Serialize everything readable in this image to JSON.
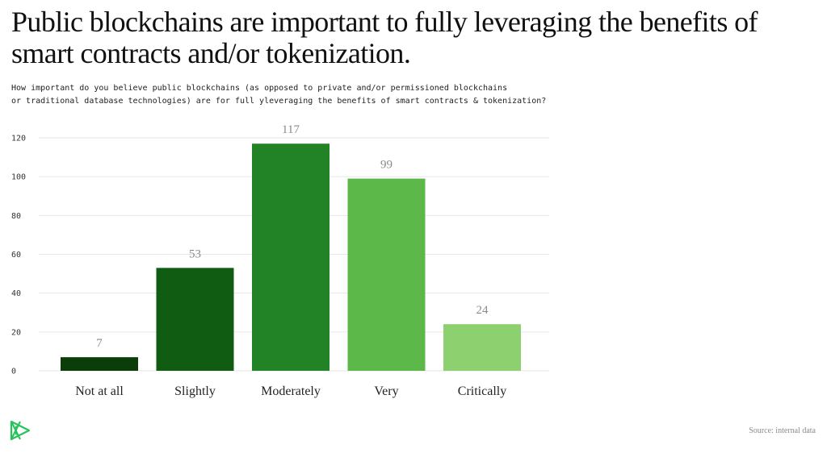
{
  "title": "Public blockchains are important to fully leveraging the benefits of smart contracts and/or tokenization.",
  "subtitle_line1": "How important do you believe public blockchains (as opposed to private and/or permissioned blockchains",
  "subtitle_line2": "or traditional database technologies) are for full yleveraging the benefits of smart contracts & tokenization?",
  "source": "Source: internal data",
  "logo_icon": "green-triangle-logo-icon",
  "colors": {
    "bars": [
      "#0b3d0b",
      "#0f5c12",
      "#228326",
      "#5db84a",
      "#8dd06f"
    ],
    "grid": "#e6e6e6",
    "value_label": "#8a8a8a",
    "logo": "#25c35a"
  },
  "chart_data": {
    "type": "bar",
    "title": "",
    "xlabel": "",
    "ylabel": "",
    "categories": [
      "Not at all",
      "Slightly",
      "Moderately",
      "Very",
      "Critically"
    ],
    "values": [
      7,
      53,
      117,
      99,
      24
    ],
    "ylim": [
      0,
      120
    ],
    "yticks": [
      0,
      20,
      40,
      60,
      80,
      100,
      120
    ],
    "grid": true,
    "legend": "none"
  }
}
